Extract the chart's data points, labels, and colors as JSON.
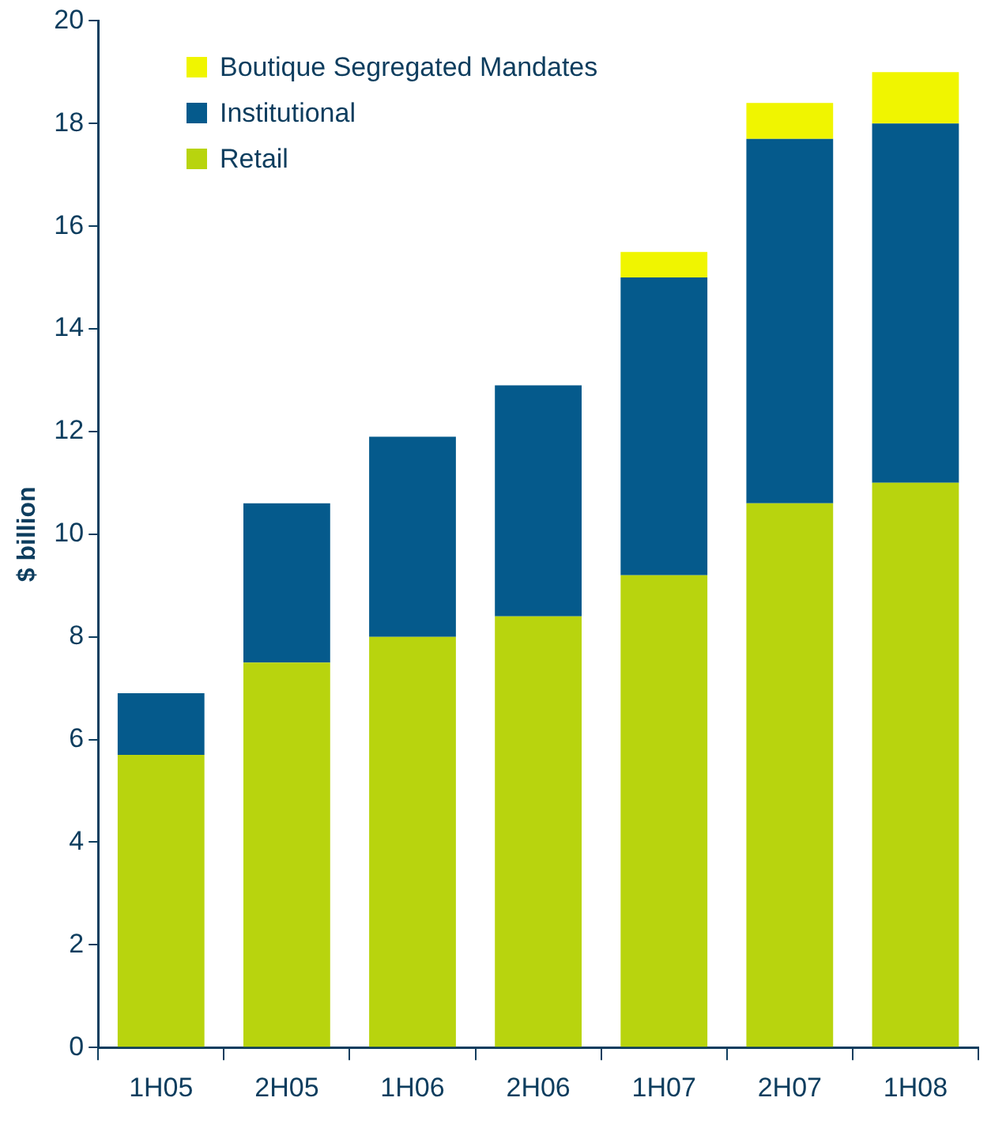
{
  "chart_data": {
    "type": "bar",
    "stacked": true,
    "ylabel": "$ billion",
    "categories": [
      "1H05",
      "2H05",
      "1H06",
      "2H06",
      "1H07",
      "2H07",
      "1H08"
    ],
    "series": [
      {
        "name": "Retail",
        "color": "#b8d40e",
        "values": [
          5.7,
          7.5,
          8.0,
          8.4,
          9.2,
          10.6,
          11.0
        ]
      },
      {
        "name": "Institutional",
        "color": "#055a8c",
        "values": [
          1.2,
          3.1,
          3.9,
          4.5,
          5.8,
          7.1,
          7.0
        ]
      },
      {
        "name": "Boutique Segregated Mandates",
        "color": "#f0f500",
        "values": [
          null,
          null,
          null,
          null,
          0.5,
          0.7,
          1.0
        ]
      }
    ],
    "ylim": [
      0,
      20
    ],
    "yticks": [
      0,
      2,
      4,
      6,
      8,
      10,
      12,
      14,
      16,
      18,
      20
    ],
    "grid": false,
    "legend": "top left"
  }
}
